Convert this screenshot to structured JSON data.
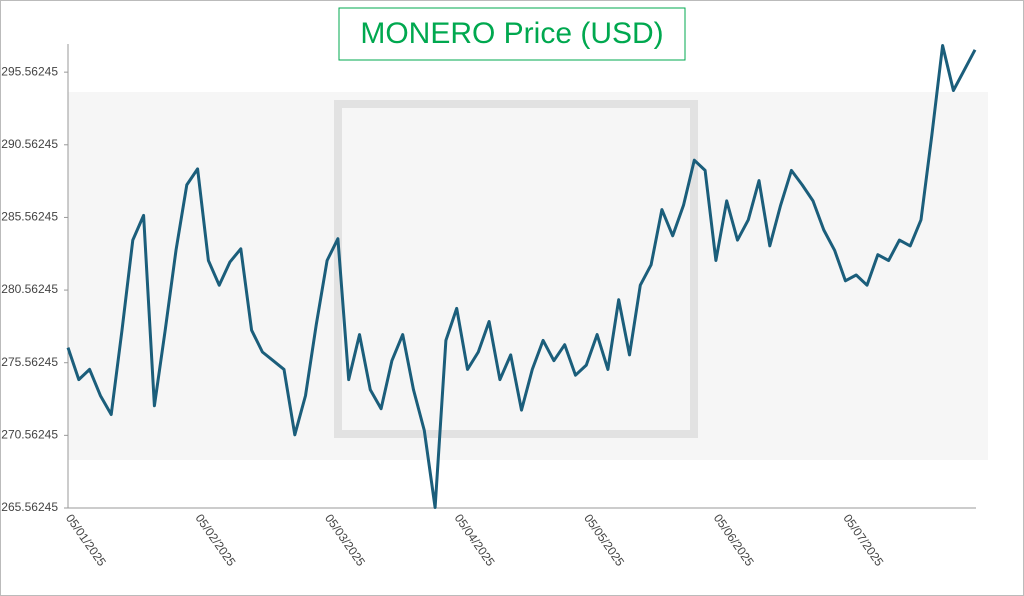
{
  "chart_data": {
    "type": "line",
    "title": "MONERO Price (USD)",
    "categories": [
      "05/01/2025",
      null,
      null,
      null,
      null,
      null,
      null,
      null,
      null,
      null,
      null,
      null,
      "05/02/2025",
      null,
      null,
      null,
      null,
      null,
      null,
      null,
      null,
      null,
      null,
      null,
      "05/03/2025",
      null,
      null,
      null,
      null,
      null,
      null,
      null,
      null,
      null,
      null,
      null,
      "05/04/2025",
      null,
      null,
      null,
      null,
      null,
      null,
      null,
      null,
      null,
      null,
      null,
      "05/05/2025",
      null,
      null,
      null,
      null,
      null,
      null,
      null,
      null,
      null,
      null,
      null,
      "05/06/2025",
      null,
      null,
      null,
      null,
      null,
      null,
      null,
      null,
      null,
      null,
      null,
      "05/07/2025",
      null,
      null,
      null,
      null,
      null,
      null,
      null,
      null,
      null,
      null,
      null,
      null
    ],
    "values": [
      276.6,
      274.4,
      275.1,
      273.3,
      272.0,
      277.8,
      284.0,
      285.7,
      272.6,
      277.8,
      283.3,
      287.8,
      288.9,
      282.6,
      280.9,
      282.5,
      283.4,
      277.8,
      276.3,
      275.7,
      275.1,
      270.6,
      273.3,
      278.2,
      282.6,
      284.1,
      274.4,
      277.5,
      273.7,
      272.4,
      275.7,
      277.5,
      273.7,
      270.9,
      265.6,
      277.1,
      279.3,
      275.1,
      276.3,
      278.4,
      274.4,
      276.1,
      272.3,
      275.1,
      277.1,
      275.7,
      276.8,
      274.7,
      275.4,
      277.5,
      275.1,
      279.9,
      276.1,
      280.9,
      282.3,
      286.1,
      284.3,
      286.4,
      289.5,
      288.8,
      282.6,
      286.7,
      284.0,
      285.4,
      288.1,
      283.6,
      286.4,
      288.8,
      287.8,
      286.7,
      284.7,
      283.3,
      281.2,
      281.6,
      280.9,
      283.0,
      282.6,
      284.0,
      283.6,
      285.4,
      291.2,
      297.4,
      294.3,
      295.7,
      297.1
    ],
    "color": "#1b5e7b",
    "ylim": [
      265.56245,
      297.5
    ],
    "yticks": [
      265.56245,
      270.56245,
      275.56245,
      280.56245,
      285.56245,
      290.56245,
      295.56245
    ],
    "grid": false
  }
}
